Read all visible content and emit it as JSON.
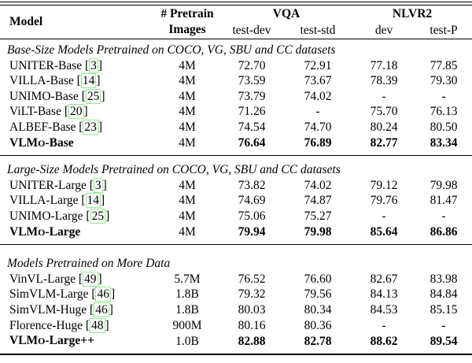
{
  "colors": {
    "background": "#ffffff",
    "text": "#000000",
    "cite_box": "#90ee90"
  },
  "table": {
    "header": {
      "model": "Model",
      "pretrain_line1": "# Pretrain",
      "pretrain_line2": "Images",
      "vqa": "VQA",
      "nlvr2": "NLVR2",
      "sub_headers": [
        "test-dev",
        "test-std",
        "dev",
        "test-P"
      ]
    },
    "sections": [
      {
        "caption": "Base-Size Models Pretrained on COCO, VG, SBU and CC datasets",
        "rows": [
          {
            "model": "UNITER-Base",
            "cite": "3",
            "images": "4M",
            "values": [
              "72.70",
              "72.91",
              "77.18",
              "77.85"
            ],
            "bold": false
          },
          {
            "model": "VILLA-Base",
            "cite": "14",
            "images": "4M",
            "values": [
              "73.59",
              "73.67",
              "78.39",
              "79.30"
            ],
            "bold": false
          },
          {
            "model": "UNIMO-Base",
            "cite": "25",
            "images": "4M",
            "values": [
              "73.79",
              "74.02",
              "-",
              "-"
            ],
            "bold": false
          },
          {
            "model": "ViLT-Base",
            "cite": "20",
            "images": "4M",
            "values": [
              "71.26",
              "-",
              "75.70",
              "76.13"
            ],
            "bold": false
          },
          {
            "model": "ALBEF-Base",
            "cite": "23",
            "images": "4M",
            "values": [
              "74.54",
              "74.70",
              "80.24",
              "80.50"
            ],
            "bold": false
          },
          {
            "model_parts": [
              {
                "text": "VLM"
              },
              {
                "text": "O",
                "smallcap": true
              },
              {
                "text": "-Base"
              }
            ],
            "images": "4M",
            "values": [
              "76.64",
              "76.89",
              "82.77",
              "83.34"
            ],
            "bold": true
          }
        ]
      },
      {
        "caption": "Large-Size Models Pretrained on COCO, VG, SBU and CC datasets",
        "rows": [
          {
            "model": "UNITER-Large",
            "cite": "3",
            "images": "4M",
            "values": [
              "73.82",
              "74.02",
              "79.12",
              "79.98"
            ],
            "bold": false
          },
          {
            "model": "VILLA-Large",
            "cite": "14",
            "images": "4M",
            "values": [
              "74.69",
              "74.87",
              "79.76",
              "81.47"
            ],
            "bold": false
          },
          {
            "model": "UNIMO-Large",
            "cite": "25",
            "images": "4M",
            "values": [
              "75.06",
              "75.27",
              "-",
              "-"
            ],
            "bold": false
          },
          {
            "model_parts": [
              {
                "text": "VLM"
              },
              {
                "text": "O",
                "smallcap": true
              },
              {
                "text": "-Large"
              }
            ],
            "images": "4M",
            "values": [
              "79.94",
              "79.98",
              "85.64",
              "86.86"
            ],
            "bold": true
          }
        ]
      },
      {
        "caption": "Models Pretrained on More Data",
        "rows": [
          {
            "model": "VinVL-Large",
            "cite": "49",
            "images": "5.7M",
            "values": [
              "76.52",
              "76.60",
              "82.67",
              "83.98"
            ],
            "bold": false
          },
          {
            "model": "SimVLM-Large",
            "cite": "46",
            "images": "1.8B",
            "values": [
              "79.32",
              "79.56",
              "84.13",
              "84.84"
            ],
            "bold": false
          },
          {
            "model": "SimVLM-Huge",
            "cite": "46",
            "images": "1.8B",
            "values": [
              "80.03",
              "80.34",
              "84.53",
              "85.15"
            ],
            "bold": false
          },
          {
            "model": "Florence-Huge",
            "cite": "48",
            "images": "900M",
            "values": [
              "80.16",
              "80.36",
              "-",
              "-"
            ],
            "bold": false
          },
          {
            "model_parts": [
              {
                "text": "VLM"
              },
              {
                "text": "O",
                "smallcap": true
              },
              {
                "text": "-Large++"
              }
            ],
            "images": "1.0B",
            "values": [
              "82.88",
              "82.78",
              "88.62",
              "89.54"
            ],
            "bold": true
          }
        ]
      }
    ]
  }
}
